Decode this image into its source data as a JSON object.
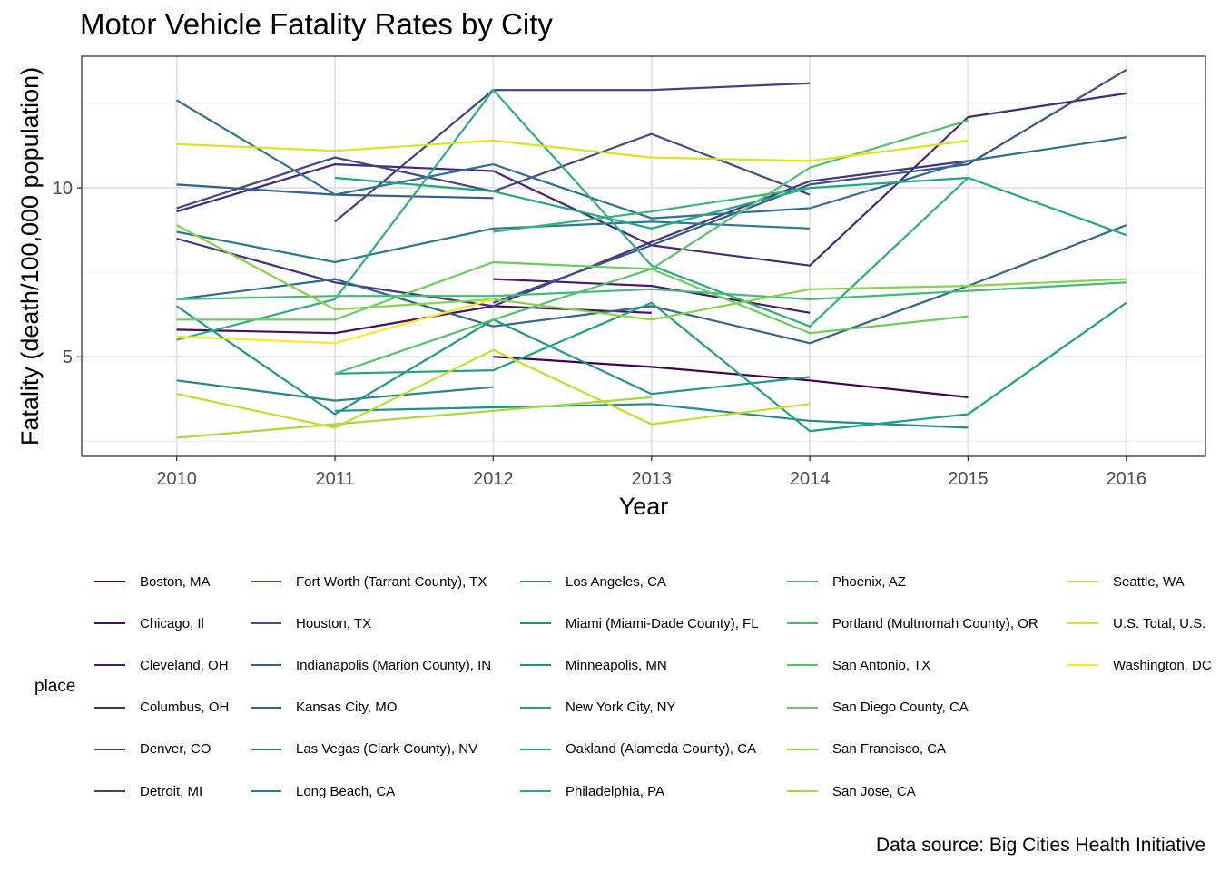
{
  "chart_data": {
    "type": "line",
    "title": "Motor Vehicle Fatality Rates by City",
    "xlabel": "Year",
    "ylabel": "Fatality (death/100,000 population)",
    "caption": "Data source: Big Cities Health Initiative",
    "legend_title": "place",
    "legend_position": "bottom",
    "grid": true,
    "xlim": [
      2009.4,
      2016.5
    ],
    "ylim": [
      2.05,
      13.9
    ],
    "x_ticks": [
      2010,
      2011,
      2012,
      2013,
      2014,
      2015,
      2016
    ],
    "y_ticks": [
      5,
      10
    ],
    "series": [
      {
        "name": "Boston, MA",
        "color": "#440154",
        "points": [
          [
            2012,
            5.0
          ],
          [
            2013,
            4.7
          ],
          [
            2014,
            4.3
          ],
          [
            2015,
            3.8
          ]
        ]
      },
      {
        "name": "Chicago, Il",
        "color": "#470E61",
        "points": [
          [
            2010,
            5.8
          ],
          [
            2011,
            5.7
          ],
          [
            2012,
            6.5
          ],
          [
            2013,
            6.3
          ]
        ]
      },
      {
        "name": "Cleveland, OH",
        "color": "#481B6D",
        "points": [
          [
            2012,
            7.3
          ],
          [
            2013,
            7.1
          ],
          [
            2014,
            6.3
          ]
        ]
      },
      {
        "name": "Columbus, OH",
        "color": "#482878",
        "points": [
          [
            2010,
            9.3
          ],
          [
            2011,
            10.7
          ],
          [
            2012,
            10.5
          ],
          [
            2013,
            8.3
          ],
          [
            2014,
            7.7
          ],
          [
            2015,
            12.1
          ],
          [
            2016,
            12.8
          ]
        ]
      },
      {
        "name": "Denver, CO",
        "color": "#46337F",
        "points": [
          [
            2010,
            8.5
          ],
          [
            2011,
            7.2
          ],
          [
            2012,
            6.5
          ],
          [
            2013,
            8.4
          ],
          [
            2014,
            10.2
          ],
          [
            2015,
            10.8
          ]
        ]
      },
      {
        "name": "Detroit, MI",
        "color": "#433E85",
        "points": [
          [
            2011,
            9.0
          ],
          [
            2012,
            12.9
          ],
          [
            2013,
            12.9
          ],
          [
            2014,
            13.1
          ]
        ]
      },
      {
        "name": "Fort Worth (Tarrant County), TX",
        "color": "#3F4889",
        "points": [
          [
            2010,
            9.4
          ],
          [
            2011,
            10.9
          ],
          [
            2012,
            9.9
          ],
          [
            2013,
            11.6
          ],
          [
            2014,
            9.8
          ]
        ]
      },
      {
        "name": "Houston, TX",
        "color": "#3A528B",
        "points": [
          [
            2012,
            6.6
          ],
          [
            2013,
            8.3
          ],
          [
            2014,
            10.1
          ],
          [
            2015,
            10.7
          ],
          [
            2016,
            13.5
          ]
        ]
      },
      {
        "name": "Indianapolis (Marion County), IN",
        "color": "#355E8D",
        "points": [
          [
            2010,
            10.1
          ],
          [
            2011,
            9.8
          ],
          [
            2012,
            9.7
          ]
        ]
      },
      {
        "name": "Kansas City, MO",
        "color": "#31688E",
        "points": [
          [
            2010,
            6.7
          ],
          [
            2011,
            7.3
          ],
          [
            2012,
            5.9
          ],
          [
            2013,
            6.5
          ],
          [
            2014,
            5.4
          ],
          [
            2015,
            7.1
          ],
          [
            2016,
            8.9
          ]
        ]
      },
      {
        "name": "Las Vegas (Clark County), NV",
        "color": "#2D718E",
        "points": [
          [
            2010,
            12.6
          ],
          [
            2011,
            9.8
          ],
          [
            2012,
            10.7
          ],
          [
            2013,
            9.1
          ],
          [
            2014,
            9.4
          ],
          [
            2015,
            10.8
          ],
          [
            2016,
            11.5
          ]
        ]
      },
      {
        "name": "Long Beach, CA",
        "color": "#297B8E",
        "points": [
          [
            2010,
            8.7
          ],
          [
            2011,
            7.8
          ],
          [
            2012,
            8.8
          ],
          [
            2013,
            9.0
          ],
          [
            2014,
            8.8
          ]
        ]
      },
      {
        "name": "Los Angeles, CA",
        "color": "#25848E",
        "points": [
          [
            2010,
            4.3
          ],
          [
            2011,
            3.7
          ],
          [
            2012,
            4.1
          ]
        ]
      },
      {
        "name": "Miami (Miami-Dade County), FL",
        "color": "#228D8D",
        "points": [
          [
            2011,
            3.4
          ],
          [
            2012,
            3.5
          ],
          [
            2013,
            3.6
          ],
          [
            2014,
            3.1
          ],
          [
            2015,
            2.9
          ]
        ]
      },
      {
        "name": "Minneapolis, MN",
        "color": "#1F968B",
        "points": [
          [
            2010,
            6.5
          ],
          [
            2011,
            3.3
          ],
          [
            2012,
            6.1
          ],
          [
            2013,
            3.9
          ],
          [
            2014,
            4.4
          ]
        ]
      },
      {
        "name": "New York City, NY",
        "color": "#1FA088",
        "points": [
          [
            2011,
            4.5
          ],
          [
            2012,
            4.6
          ],
          [
            2013,
            6.6
          ],
          [
            2014,
            2.8
          ],
          [
            2015,
            3.3
          ],
          [
            2016,
            6.6
          ]
        ]
      },
      {
        "name": "Oakland (Alameda County), CA",
        "color": "#21A784",
        "points": [
          [
            2011,
            10.3
          ],
          [
            2012,
            9.9
          ],
          [
            2013,
            8.8
          ],
          [
            2014,
            10.0
          ],
          [
            2015,
            10.3
          ],
          [
            2016,
            8.6
          ]
        ]
      },
      {
        "name": "Philadelphia, PA",
        "color": "#28AE80",
        "points": [
          [
            2010,
            5.5
          ],
          [
            2011,
            6.7
          ],
          [
            2012,
            12.9
          ],
          [
            2013,
            7.7
          ],
          [
            2014,
            5.9
          ],
          [
            2015,
            10.3
          ]
        ]
      },
      {
        "name": "Phoenix, AZ",
        "color": "#35B779",
        "points": [
          [
            2012,
            8.7
          ],
          [
            2013,
            9.3
          ],
          [
            2014,
            10.0
          ]
        ]
      },
      {
        "name": "Portland (Multnomah County), OR",
        "color": "#40BD72",
        "points": [
          [
            2010,
            6.7
          ],
          [
            2011,
            6.8
          ],
          [
            2012,
            6.8
          ],
          [
            2013,
            7.0
          ],
          [
            2014,
            6.7
          ],
          [
            2015,
            6.95
          ],
          [
            2016,
            7.2
          ]
        ]
      },
      {
        "name": "San Antonio, TX",
        "color": "#4FC46A",
        "points": [
          [
            2011,
            4.5
          ],
          [
            2012,
            6.1
          ],
          [
            2013,
            7.6
          ],
          [
            2014,
            10.6
          ],
          [
            2015,
            12.0
          ]
        ]
      },
      {
        "name": "San Diego County, CA",
        "color": "#6ACD5B",
        "points": [
          [
            2010,
            6.1
          ],
          [
            2011,
            6.1
          ],
          [
            2012,
            7.8
          ],
          [
            2013,
            7.6
          ],
          [
            2014,
            5.7
          ],
          [
            2015,
            6.2
          ]
        ]
      },
      {
        "name": "San Francisco, CA",
        "color": "#86D549",
        "points": [
          [
            2010,
            8.9
          ],
          [
            2011,
            6.4
          ],
          [
            2012,
            6.7
          ],
          [
            2013,
            6.1
          ],
          [
            2014,
            7.0
          ],
          [
            2015,
            7.1
          ],
          [
            2016,
            7.3
          ]
        ]
      },
      {
        "name": "San Jose, CA",
        "color": "#A4DB36",
        "points": [
          [
            2010,
            2.6
          ],
          [
            2011,
            3.0
          ],
          [
            2012,
            3.4
          ],
          [
            2013,
            3.8
          ]
        ]
      },
      {
        "name": "Seattle, WA",
        "color": "#C0DF25",
        "points": [
          [
            2010,
            3.9
          ],
          [
            2011,
            2.9
          ],
          [
            2012,
            5.2
          ],
          [
            2013,
            3.0
          ],
          [
            2014,
            3.6
          ]
        ]
      },
      {
        "name": "U.S. Total, U.S.",
        "color": "#DEE318",
        "points": [
          [
            2010,
            11.3
          ],
          [
            2011,
            11.1
          ],
          [
            2012,
            11.4
          ],
          [
            2013,
            10.9
          ],
          [
            2014,
            10.8
          ],
          [
            2015,
            11.4
          ]
        ]
      },
      {
        "name": "Washington, DC",
        "color": "#FDE725",
        "points": [
          [
            2010,
            5.6
          ],
          [
            2011,
            5.4
          ],
          [
            2012,
            6.7
          ]
        ]
      }
    ]
  }
}
